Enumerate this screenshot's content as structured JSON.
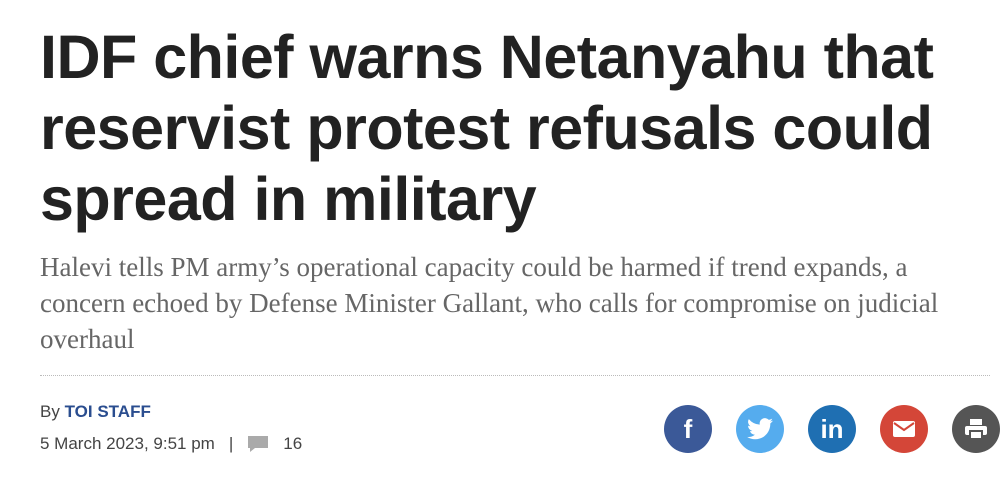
{
  "headline": "IDF chief warns Netanyahu that reservist protest refusals could spread in military",
  "subhead": "Halevi tells PM army’s operational capacity could be harmed if trend expands, a concern echoed by Defense Minister Gallant, who calls for compromise on judicial overhaul",
  "byline": {
    "prefix": "By",
    "author": "TOI STAFF"
  },
  "date": "5 March 2023, 9:51 pm",
  "separator": "|",
  "comments": "16",
  "share": {
    "facebook": "f",
    "linkedin": "in"
  }
}
